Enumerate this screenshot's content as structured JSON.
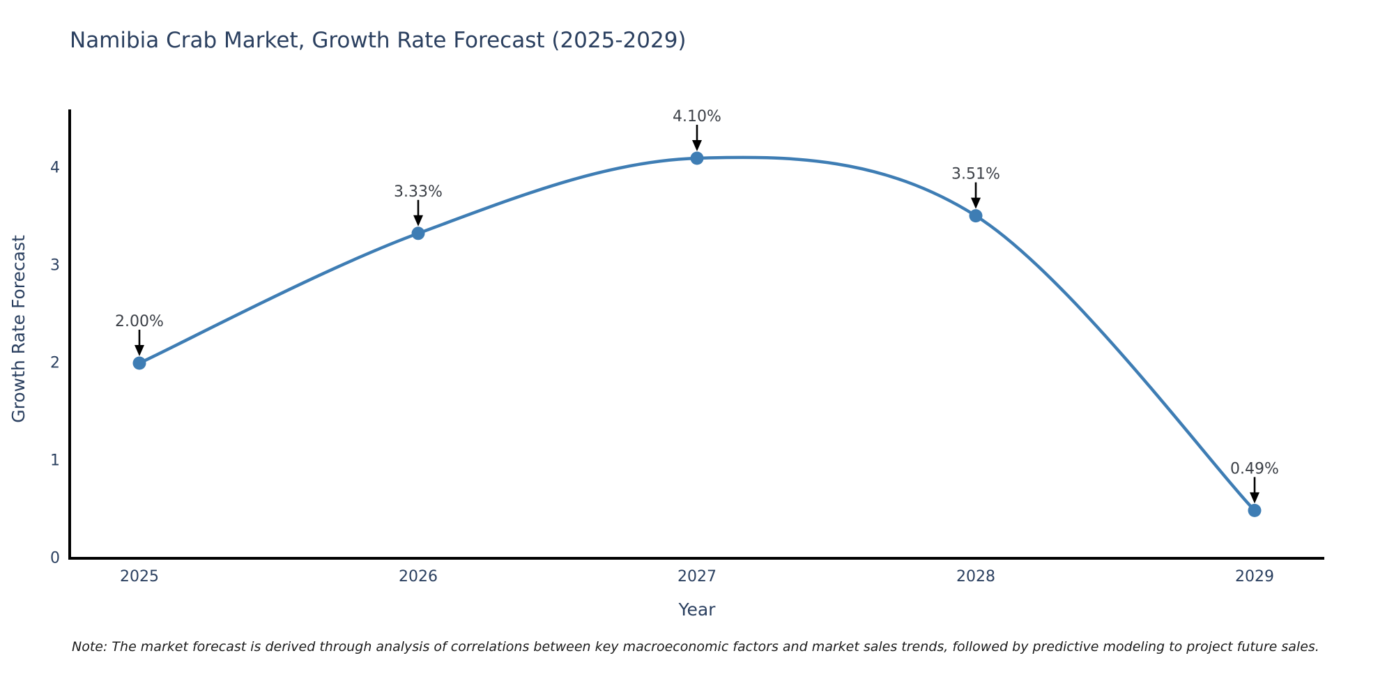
{
  "title": "Namibia Crab Market, Growth Rate Forecast (2025-2029)",
  "note": "Note: The market forecast is derived through analysis of correlations between key macroeconomic factors and market sales trends, followed by predictive modeling to project future sales.",
  "chart_data": {
    "type": "line",
    "title": "Namibia Crab Market, Growth Rate Forecast (2025-2029)",
    "xlabel": "Year",
    "ylabel": "Growth Rate Forecast",
    "categories": [
      "2025",
      "2026",
      "2027",
      "2028",
      "2029"
    ],
    "values": [
      2.0,
      3.33,
      4.1,
      3.51,
      0.49
    ],
    "point_labels": [
      "2.00%",
      "3.33%",
      "4.10%",
      "3.51%",
      "0.49%"
    ],
    "yticks": [
      0,
      1,
      2,
      3,
      4
    ],
    "ylim": [
      0,
      4.6
    ],
    "grid": false,
    "legend": "none",
    "smooth": true,
    "annotation_style": "black-down-arrow"
  },
  "colors": {
    "line": "#3e7db4",
    "marker": "#3e7db4",
    "axis_spine": "#000000",
    "tick_text": "#2a3f5f",
    "annotation_text": "#3b3f46",
    "annotation_arrow": "#000000",
    "heading_text": "#2a3f5f",
    "background": "#ffffff"
  }
}
